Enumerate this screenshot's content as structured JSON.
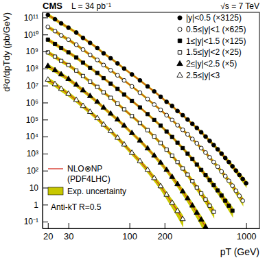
{
  "chart_data": {
    "type": "scatter",
    "log": true,
    "legend": "top-right",
    "xlabel": "pT (GeV)",
    "ylabel": "d²σ/dpTdy (pb/GeV)",
    "annotations": [
      "CMS",
      "L = 34 pb⁻¹",
      "√s = 7 TeV",
      "Anti-kT R=0.5"
    ],
    "xlim": [
      18,
      1300
    ],
    "xticks": [
      20,
      30,
      100,
      200,
      1000
    ],
    "ylim": [
      0.04,
      200000000000.0
    ],
    "yticks": [
      {
        "value": 0.1,
        "label": "10⁻¹"
      },
      1,
      10,
      {
        "value": 100,
        "label": "10²"
      },
      {
        "value": 1000,
        "label": "10³"
      },
      {
        "value": 10000,
        "label": "10⁴"
      },
      {
        "value": 100000,
        "label": "10⁵"
      },
      {
        "value": 1000000,
        "label": "10⁶"
      },
      {
        "value": 10000000,
        "label": "10⁷"
      },
      {
        "value": 100000000,
        "label": "10⁸"
      },
      {
        "value": 1000000000,
        "label": "10⁹"
      },
      {
        "value": 10000000000,
        "label": "10¹⁰"
      },
      {
        "value": 100000000000,
        "label": "10¹¹"
      }
    ],
    "theory": {
      "name": "NLO⊗NP",
      "subtitle": "(PDF4LHC)",
      "color": "#d42a1e",
      "band_name": "Exp. uncertainty",
      "band_color": "#c8c800"
    },
    "series": [
      {
        "name": "|y|<0.5 (×3125)",
        "marker": "circle",
        "color": "#000000",
        "x": [
          20,
          23,
          26,
          30,
          35,
          40,
          46,
          53,
          60,
          69,
          79,
          90,
          105,
          123,
          143,
          163,
          185,
          208,
          232,
          258,
          286,
          315,
          346,
          378,
          412,
          449,
          487,
          527,
          570,
          615,
          662,
          711,
          763,
          818,
          875,
          935,
          999
        ],
        "values": [
          140000000000.0,
          79000000000.0,
          45000000000.0,
          25000000000.0,
          13000000000.0,
          6300000000.0,
          3200000000.0,
          1600000000.0,
          790000000.0,
          400000000.0,
          200000000.0,
          100000000.0,
          45000000.0,
          20000000.0,
          8900000.0,
          4500000.0,
          2200000.0,
          1100000.0,
          630000.0,
          320000.0,
          180000.0,
          100000.0,
          56000.0,
          32000.0,
          18000.0,
          10000.0,
          5600.0,
          3200.0,
          1800.0,
          1000.0,
          560.0,
          320.0,
          180.0,
          100.0,
          56.0,
          32.0,
          18.0
        ],
        "nlo": [
          140000000000.0,
          79000000000.0,
          45000000000.0,
          25000000000.0,
          13000000000.0,
          6300000000.0,
          3200000000.0,
          1600000000.0,
          790000000.0,
          400000000.0,
          200000000.0,
          100000000.0,
          45000000.0,
          20000000.0,
          8900000.0,
          4500000.0,
          2200000.0,
          1100000.0,
          630000.0,
          320000.0,
          180000.0,
          100000.0,
          56000.0,
          32000.0,
          18000.0,
          10000.0,
          5600.0,
          3200.0,
          1800.0,
          1000.0,
          560.0,
          320.0,
          180.0,
          100.0,
          56.0,
          32.0,
          18.0
        ],
        "exp_uncertainty": [
          16,
          15,
          14,
          13,
          12,
          11,
          10,
          10,
          9,
          9,
          9,
          8,
          8,
          8,
          8,
          8,
          8,
          8,
          8,
          9,
          9,
          9,
          10,
          10,
          11,
          12,
          12,
          13,
          14,
          15,
          17,
          19,
          21,
          24,
          27,
          31,
          35
        ]
      },
      {
        "name": "0.5≤|y|<1 (×625)",
        "marker": "circle-open",
        "color": "#000000",
        "x": [
          20,
          23,
          26,
          30,
          35,
          40,
          46,
          53,
          60,
          69,
          79,
          90,
          105,
          123,
          143,
          163,
          185,
          208,
          232,
          258,
          286,
          315,
          346,
          378,
          412,
          449,
          487,
          527,
          570,
          615,
          662,
          711,
          763,
          818,
          875,
          935
        ],
        "values": [
          28000000000.0,
          16000000000.0,
          8900000000.0,
          5000000000.0,
          2500000000.0,
          1300000000.0,
          630000000.0,
          320000000.0,
          160000000.0,
          79000000.0,
          40000000.0,
          20000000.0,
          8900000.0,
          3800000.0,
          1600000.0,
          760000.0,
          370000.0,
          180000.0,
          95000.0,
          47000.0,
          25000.0,
          13500.0,
          7200.0,
          4000.0,
          2100.0,
          1150.0,
          600.0,
          320.0,
          170.0,
          89.0,
          47.0,
          25.0,
          13.0,
          6.5,
          3.3,
          1.7
        ],
        "nlo": [
          28000000000.0,
          16000000000.0,
          8900000000.0,
          5000000000.0,
          2500000000.0,
          1300000000.0,
          630000000.0,
          320000000.0,
          160000000.0,
          79000000.0,
          40000000.0,
          20000000.0,
          8900000.0,
          3800000.0,
          1600000.0,
          760000.0,
          370000.0,
          180000.0,
          95000.0,
          47000.0,
          25000.0,
          13500.0,
          7200.0,
          4000.0,
          2100.0,
          1150.0,
          600.0,
          320.0,
          170.0,
          89.0,
          47.0,
          25.0,
          13.0,
          6.5,
          3.3,
          1.7
        ],
        "exp_uncertainty": [
          17,
          16,
          15,
          14,
          13,
          12,
          11,
          11,
          10,
          10,
          10,
          9,
          9,
          9,
          9,
          9,
          9,
          9,
          10,
          10,
          10,
          11,
          11,
          12,
          13,
          14,
          15,
          16,
          18,
          20,
          22,
          25,
          28,
          32,
          36,
          40
        ]
      },
      {
        "name": "1≤|y|<1.5 (×125)",
        "marker": "square",
        "color": "#000000",
        "x": [
          20,
          23,
          26,
          30,
          35,
          40,
          46,
          53,
          60,
          69,
          79,
          90,
          105,
          123,
          143,
          163,
          185,
          208,
          232,
          258,
          286,
          315,
          346,
          378,
          412,
          449,
          487,
          527,
          570,
          615,
          662,
          711,
          763
        ],
        "values": [
          5000000000.0,
          2800000000.0,
          1600000000.0,
          890000000.0,
          450000000.0,
          220000000.0,
          110000000.0,
          55000000.0,
          27000000.0,
          13000000.0,
          6300000.0,
          3000000.0,
          1260000.0,
          520000.0,
          210000.0,
          95000.0,
          44000.0,
          20000.0,
          9500.0,
          4400.0,
          2100.0,
          1000.0,
          480.0,
          230.0,
          110.0,
          55.0,
          28.0,
          14.0,
          6.9,
          3.5,
          1.7,
          0.87,
          0.44
        ],
        "nlo": [
          5000000000.0,
          2800000000.0,
          1600000000.0,
          890000000.0,
          450000000.0,
          220000000.0,
          110000000.0,
          55000000.0,
          27000000.0,
          13000000.0,
          6300000.0,
          3000000.0,
          1260000.0,
          520000.0,
          210000.0,
          95000.0,
          44000.0,
          20000.0,
          9500.0,
          4400.0,
          2100.0,
          1000.0,
          480.0,
          230.0,
          110.0,
          55.0,
          28.0,
          14.0,
          6.9,
          3.5,
          1.7,
          0.87,
          0.44
        ],
        "exp_uncertainty": [
          18,
          17,
          16,
          15,
          14,
          13,
          12,
          12,
          11,
          11,
          11,
          10,
          10,
          10,
          10,
          11,
          11,
          12,
          12,
          13,
          14,
          15,
          16,
          18,
          20,
          22,
          25,
          28,
          32,
          36,
          40,
          45,
          50
        ]
      },
      {
        "name": "1.5≤|y|<2 (×25)",
        "marker": "square-open",
        "color": "#000000",
        "x": [
          20,
          23,
          26,
          30,
          35,
          40,
          46,
          53,
          60,
          69,
          79,
          90,
          105,
          123,
          143,
          163,
          185,
          208,
          232,
          258,
          286,
          315,
          346,
          378,
          412,
          449,
          487,
          527
        ],
        "values": [
          890000000.0,
          500000000.0,
          280000000.0,
          160000000.0,
          76000000.0,
          36000000.0,
          17000000.0,
          8300000.0,
          4000000.0,
          1900000.0,
          870000.0,
          400000.0,
          160000.0,
          63000.0,
          24000.0,
          10000.0,
          4200.0,
          1700.0,
          760.0,
          320.0,
          135.0,
          58.0,
          24.0,
          10.0,
          4.6,
          2.0,
          0.87,
          0.38
        ],
        "nlo": [
          890000000.0,
          500000000.0,
          280000000.0,
          160000000.0,
          76000000.0,
          36000000.0,
          17000000.0,
          8300000.0,
          4000000.0,
          1900000.0,
          870000.0,
          400000.0,
          160000.0,
          63000.0,
          24000.0,
          10000.0,
          4200.0,
          1700.0,
          760.0,
          320.0,
          135.0,
          58.0,
          24.0,
          10.0,
          4.6,
          2.0,
          0.87,
          0.38
        ],
        "exp_uncertainty": [
          20,
          19,
          18,
          17,
          16,
          15,
          14,
          13,
          13,
          12,
          12,
          12,
          12,
          12,
          13,
          13,
          14,
          15,
          16,
          18,
          20,
          22,
          25,
          28,
          32,
          37,
          42,
          48
        ]
      },
      {
        "name": "2≤|y|<2.5 (×5)",
        "marker": "triangle",
        "color": "#000000",
        "x": [
          20,
          23,
          26,
          30,
          35,
          40,
          46,
          53,
          60,
          69,
          79,
          90,
          105,
          123,
          143,
          163,
          185,
          208,
          232,
          258,
          286,
          315,
          346,
          378,
          412,
          449
        ],
        "values": [
          140000000.0,
          79000000.0,
          45000000.0,
          24000000.0,
          11000000.0,
          5200000.0,
          2400000.0,
          1100000.0,
          500000.0,
          220000.0,
          100000.0,
          44000.0,
          16000.0,
          5800.0,
          2000.0,
          760.0,
          290.0,
          110.0,
          42.0,
          16.0,
          6.0,
          2.3,
          0.87,
          0.33,
          0.13,
          0.048
        ],
        "nlo": [
          140000000.0,
          79000000.0,
          45000000.0,
          24000000.0,
          11000000.0,
          5200000.0,
          2400000.0,
          1100000.0,
          500000.0,
          220000.0,
          100000.0,
          44000.0,
          16000.0,
          5800.0,
          2000.0,
          760.0,
          290.0,
          110.0,
          42.0,
          16.0,
          6.0,
          2.3,
          0.87,
          0.33,
          0.13,
          0.048
        ],
        "exp_uncertainty": [
          24,
          22,
          21,
          20,
          19,
          18,
          17,
          16,
          15,
          15,
          15,
          15,
          15,
          16,
          17,
          18,
          20,
          22,
          25,
          28,
          32,
          36,
          41,
          46,
          52,
          58
        ]
      },
      {
        "name": "2.5≤|y|<3",
        "marker": "triangle-open",
        "color": "#000000",
        "x": [
          20,
          23,
          26,
          30,
          35,
          40,
          46,
          53,
          60,
          69,
          79,
          90,
          105,
          123,
          143,
          163,
          185,
          208,
          232,
          258,
          286
        ],
        "values": [
          22000000.0,
          12000000.0,
          6300000.0,
          3200000.0,
          1400000.0,
          630000.0,
          280000.0,
          120000.0,
          50000.0,
          21000.0,
          8500.0,
          3400.0,
          1100.0,
          360.0,
          110.0,
          36.0,
          12.0,
          3.8,
          1.26,
          0.42,
          0.14
        ],
        "nlo": [
          22000000.0,
          12000000.0,
          6300000.0,
          3200000.0,
          1400000.0,
          630000.0,
          280000.0,
          120000.0,
          50000.0,
          21000.0,
          8500.0,
          3400.0,
          1100.0,
          360.0,
          110.0,
          36.0,
          12.0,
          3.8,
          1.26,
          0.42,
          0.14
        ],
        "exp_uncertainty": [
          28,
          26,
          25,
          24,
          23,
          22,
          21,
          20,
          20,
          20,
          20,
          21,
          22,
          24,
          26,
          29,
          33,
          38,
          44,
          50,
          57
        ]
      }
    ]
  }
}
